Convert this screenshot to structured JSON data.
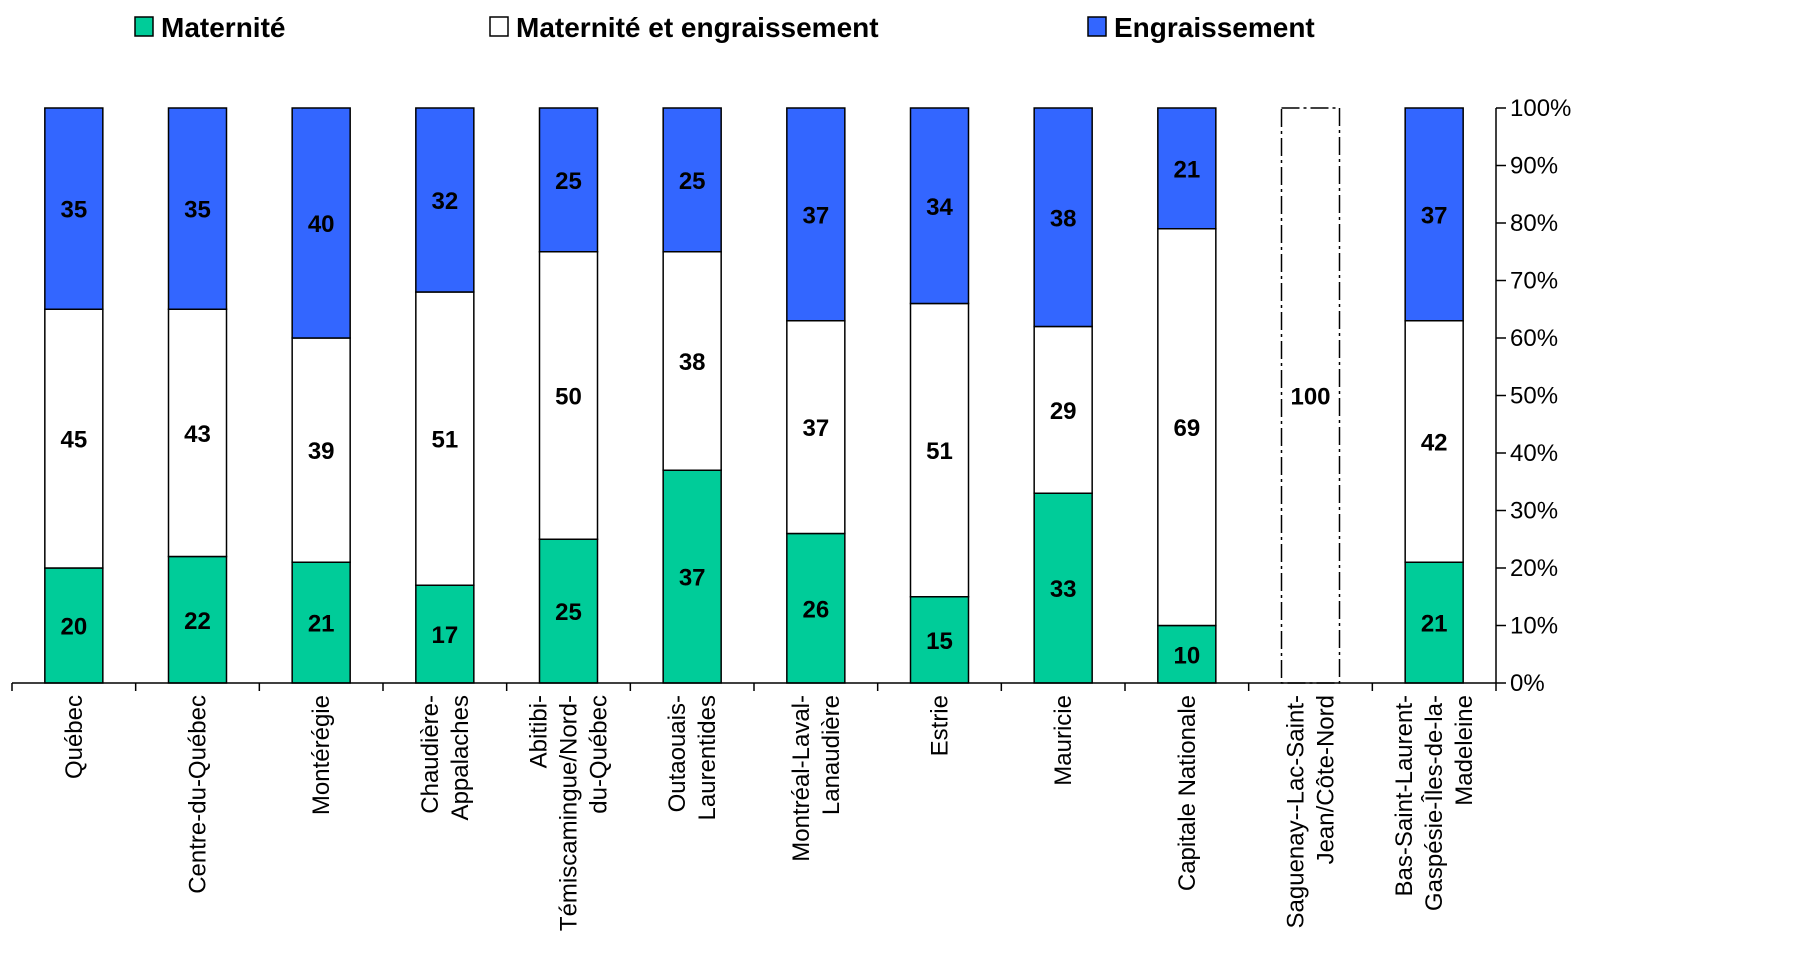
{
  "chart_data": {
    "type": "bar",
    "stacked": true,
    "percent_stacked": true,
    "y_axis_position": "right",
    "ylim": [
      0,
      100
    ],
    "y_ticks": [
      "0%",
      "10%",
      "20%",
      "30%",
      "40%",
      "50%",
      "60%",
      "70%",
      "80%",
      "90%",
      "100%"
    ],
    "legend_position": "top",
    "categories": [
      [
        "Québec"
      ],
      [
        "Centre-du-Québec"
      ],
      [
        "Montérégie"
      ],
      [
        "Chaudière-",
        "Appalaches"
      ],
      [
        "Abitibi-",
        "Témiscamingue/Nord-",
        "du-Québec"
      ],
      [
        "Outaouais-",
        "Laurentides"
      ],
      [
        "Montréal-Laval-",
        "Lanaudière"
      ],
      [
        "Estrie"
      ],
      [
        "Mauricie"
      ],
      [
        "Capitale Nationale"
      ],
      [
        "Saguenay--Lac-Saint-",
        "Jean/Côte-Nord"
      ],
      [
        "Bas-Saint-Laurent-",
        "Gaspésie-Îles-de-la-",
        "Madeleine"
      ]
    ],
    "series": [
      {
        "name": "Maternité",
        "color": "#00CC99",
        "values": [
          20,
          22,
          21,
          17,
          25,
          37,
          26,
          15,
          33,
          10,
          0,
          21
        ]
      },
      {
        "name": "Maternité et engraissement",
        "color": "#FFFFFF",
        "values": [
          45,
          43,
          39,
          51,
          50,
          38,
          37,
          51,
          29,
          69,
          100,
          42
        ]
      },
      {
        "name": "Engraissement",
        "color": "#3366FF",
        "values": [
          35,
          35,
          40,
          32,
          25,
          25,
          37,
          34,
          38,
          21,
          0,
          37
        ]
      }
    ]
  }
}
